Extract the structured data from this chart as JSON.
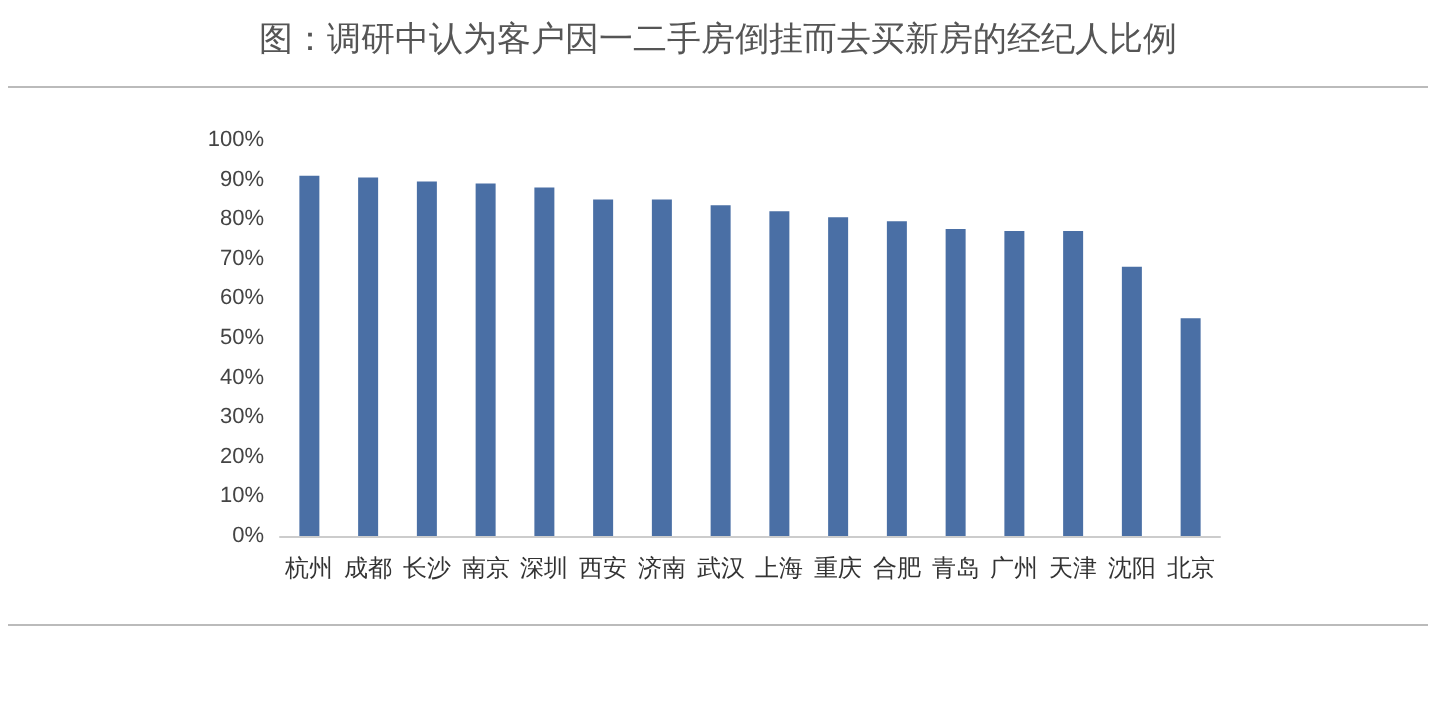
{
  "chart_data": {
    "type": "bar",
    "title": "图：调研中认为客户因一二手房倒挂而去买新房的经纪人比例",
    "categories": [
      "杭州",
      "成都",
      "长沙",
      "南京",
      "深圳",
      "西安",
      "济南",
      "武汉",
      "上海",
      "重庆",
      "合肥",
      "青岛",
      "广州",
      "天津",
      "沈阳",
      "北京"
    ],
    "values": [
      91,
      90.5,
      89.5,
      89,
      88,
      85,
      85,
      83.5,
      82,
      80.5,
      79.5,
      77.5,
      77,
      77,
      68,
      55
    ],
    "color": "#4a6fa5",
    "ylim": [
      0,
      100
    ],
    "yticks": [
      {
        "value": 0,
        "label": "0%"
      },
      {
        "value": 10,
        "label": "10%"
      },
      {
        "value": 20,
        "label": "20%"
      },
      {
        "value": 30,
        "label": "30%"
      },
      {
        "value": 40,
        "label": "40%"
      },
      {
        "value": 50,
        "label": "50%"
      },
      {
        "value": 60,
        "label": "60%"
      },
      {
        "value": 70,
        "label": "70%"
      },
      {
        "value": 80,
        "label": "80%"
      },
      {
        "value": 90,
        "label": "90%"
      },
      {
        "value": 100,
        "label": "100%"
      }
    ],
    "grid": false
  }
}
